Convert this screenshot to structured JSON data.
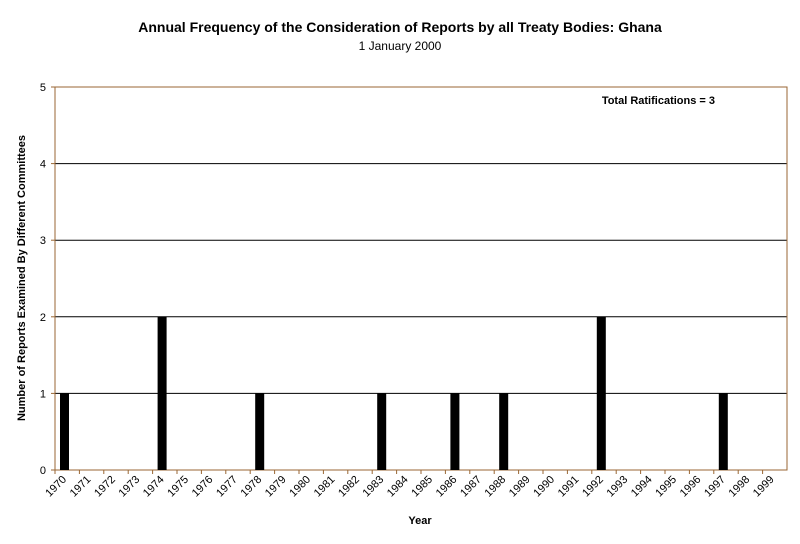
{
  "chart_data": {
    "type": "bar",
    "title": "Annual Frequency of the Consideration of Reports by all Treaty Bodies: Ghana",
    "subtitle": "1 January 2000",
    "xlabel": "Year",
    "ylabel": "Number of Reports Examined By Different Committees",
    "annotation": "Total Ratifications = 3",
    "ylim": [
      0,
      5
    ],
    "yticks": [
      0,
      1,
      2,
      3,
      4,
      5
    ],
    "grid": true,
    "categories": [
      "1970",
      "1971",
      "1972",
      "1973",
      "1974",
      "1975",
      "1976",
      "1977",
      "1978",
      "1979",
      "1980",
      "1981",
      "1982",
      "1983",
      "1984",
      "1985",
      "1986",
      "1987",
      "1988",
      "1989",
      "1990",
      "1991",
      "1992",
      "1993",
      "1994",
      "1995",
      "1996",
      "1997",
      "1998",
      "1999"
    ],
    "values": [
      1,
      0,
      0,
      0,
      2,
      0,
      0,
      0,
      1,
      0,
      0,
      0,
      0,
      1,
      0,
      0,
      1,
      0,
      1,
      0,
      0,
      0,
      2,
      0,
      0,
      0,
      0,
      1,
      0,
      0
    ],
    "colors": {
      "bar": "#000000",
      "grid": "#000000",
      "axis_border": "#996633"
    }
  }
}
